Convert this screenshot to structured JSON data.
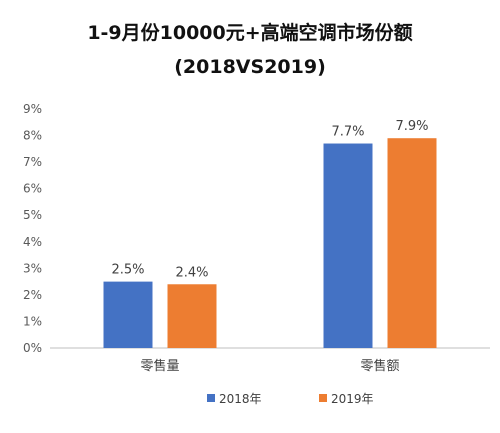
{
  "chart_data": {
    "type": "bar",
    "title_lines": [
      "1-9月份10000元+高端空调市场份额",
      "(2018VS2019)"
    ],
    "categories": [
      "零售量",
      "零售额"
    ],
    "series": [
      {
        "name": "2018年",
        "values": [
          2.5,
          7.7
        ],
        "color": "#4472C4"
      },
      {
        "name": "2019年",
        "values": [
          2.4,
          7.9
        ],
        "color": "#ED7D31"
      }
    ],
    "data_labels": [
      [
        "2.5%",
        "7.7%"
      ],
      [
        "2.4%",
        "7.9%"
      ]
    ],
    "y_unit": "%",
    "ylim": [
      0,
      9
    ],
    "y_ticks": [
      0,
      1,
      2,
      3,
      4,
      5,
      6,
      7,
      8,
      9
    ],
    "y_tick_labels": [
      "0%",
      "1%",
      "2%",
      "3%",
      "4%",
      "5%",
      "6%",
      "7%",
      "8%",
      "9%"
    ],
    "grid": false,
    "legend": "bottom"
  }
}
